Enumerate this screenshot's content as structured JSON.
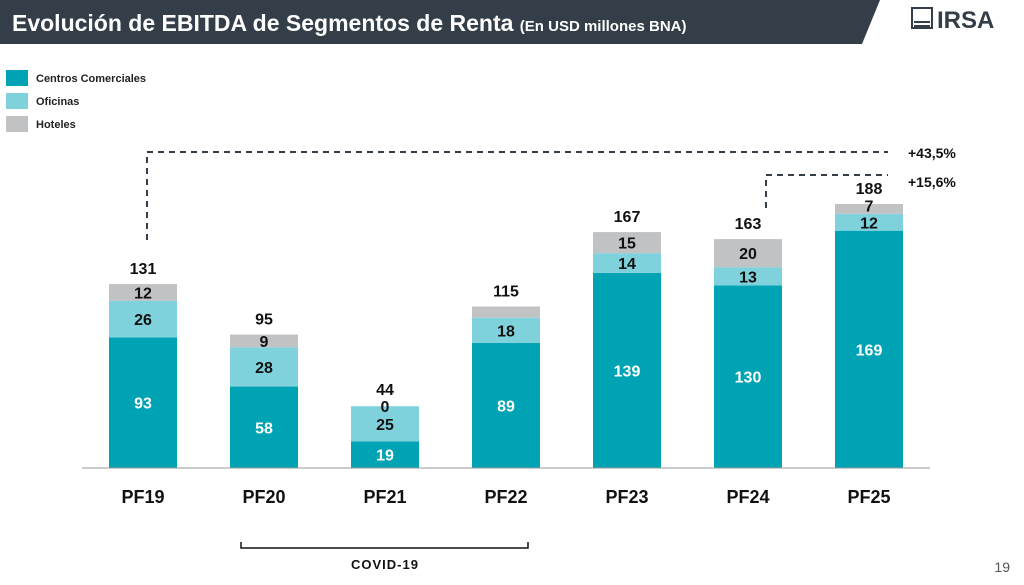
{
  "header": {
    "title": "Evolución de EBITDA de Segmentos de Renta",
    "subtitle": "(En USD millones BNA)",
    "logo_text": "IRSA",
    "bg_color": "#333e48"
  },
  "page_number": "19",
  "chart_data": {
    "type": "bar",
    "stacked": true,
    "categories": [
      "PF19",
      "PF20",
      "PF21",
      "PF22",
      "PF23",
      "PF24",
      "PF25"
    ],
    "series": [
      {
        "name": "Centros Comerciales",
        "color": "#00a3b4",
        "values": [
          93,
          58,
          19,
          89,
          139,
          130,
          169
        ]
      },
      {
        "name": "Oficinas",
        "color": "#7fd2dc",
        "values": [
          26,
          28,
          25,
          18,
          14,
          13,
          12
        ]
      },
      {
        "name": "Hoteles",
        "color": "#c0c2c4",
        "values": [
          12,
          9,
          0,
          8,
          15,
          20,
          7
        ]
      }
    ],
    "segment_labels": [
      [
        "93",
        "26",
        "12"
      ],
      [
        "58",
        "28",
        "9"
      ],
      [
        "19",
        "25",
        "0"
      ],
      [
        "89",
        "18",
        ""
      ],
      [
        "139",
        "14",
        "15"
      ],
      [
        "130",
        "13",
        "20"
      ],
      [
        "169",
        "12",
        "7"
      ]
    ],
    "totals": [
      "131",
      "95",
      "44",
      "115",
      "167",
      "163",
      "188"
    ],
    "legend": {
      "placement": "top-left"
    },
    "ylim": [
      0,
      200
    ],
    "annotations": [
      {
        "text": "+43,5%",
        "from": "PF19",
        "to": "PF25"
      },
      {
        "text": "+15,6%",
        "from": "PF24",
        "to": "PF25"
      },
      {
        "text": "COVID-19",
        "from": "PF20",
        "to": "PF22"
      }
    ]
  }
}
